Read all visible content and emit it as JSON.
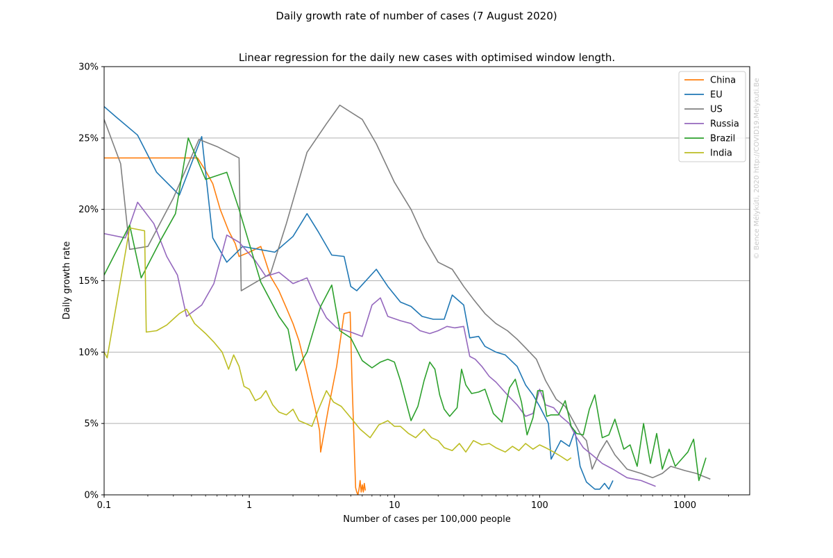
{
  "figure": {
    "suptitle": "Daily growth rate of number of cases (7 August 2020)",
    "watermark": "© Bence Mélykúti, 2020  http://COVID19.Melykuti.Be"
  },
  "chart_data": {
    "type": "line",
    "title": "Linear regression for the daily new cases with optimised window length.",
    "xlabel": "Number of cases per 100,000 people",
    "ylabel": "Daily growth rate",
    "xscale": "log",
    "xlim": [
      0.1,
      2800
    ],
    "ylim": [
      0,
      0.3
    ],
    "x_ticks": [
      0.1,
      1,
      10,
      100,
      1000
    ],
    "x_tick_labels": [
      "0.1",
      "1",
      "10",
      "100",
      "1000"
    ],
    "y_ticks": [
      0,
      0.05,
      0.1,
      0.15,
      0.2,
      0.25,
      0.3
    ],
    "y_tick_labels": [
      "0%",
      "5%",
      "10%",
      "15%",
      "20%",
      "25%",
      "30%"
    ],
    "grid": "horizontal",
    "legend": "top-right",
    "series": [
      {
        "name": "China",
        "color": "#ff7f0e",
        "x": [
          0.1,
          0.44,
          0.5,
          0.56,
          0.63,
          0.72,
          0.8,
          0.85,
          1.0,
          1.2,
          1.4,
          1.6,
          1.8,
          2.0,
          2.2,
          2.5,
          2.7,
          2.85,
          3.05,
          3.1,
          3.5,
          4.0,
          4.5,
          4.95,
          5.1,
          5.4,
          5.5,
          5.6,
          5.7,
          5.8,
          5.9,
          6.0,
          6.1,
          6.2,
          6.3
        ],
        "y": [
          0.236,
          0.236,
          0.227,
          0.218,
          0.2,
          0.185,
          0.176,
          0.167,
          0.17,
          0.174,
          0.153,
          0.143,
          0.131,
          0.12,
          0.108,
          0.085,
          0.07,
          0.06,
          0.045,
          0.03,
          0.06,
          0.09,
          0.127,
          0.128,
          0.08,
          0.005,
          0.002,
          0.0,
          0.004,
          0.01,
          0.002,
          0.007,
          0.002,
          0.008,
          0.003
        ]
      },
      {
        "name": "EU",
        "color": "#1f77b4",
        "x": [
          0.1,
          0.12,
          0.17,
          0.23,
          0.33,
          0.47,
          0.56,
          0.7,
          0.9,
          1.5,
          2.0,
          2.5,
          3.0,
          3.7,
          4.5,
          5.0,
          5.5,
          7.5,
          9.0,
          11.0,
          13.0,
          15.5,
          18.5,
          22.0,
          25.0,
          30.0,
          33.0,
          38.0,
          42.0,
          50.0,
          58.0,
          70.0,
          80.0,
          90.0,
          100.0,
          115.0,
          120.0,
          140.0,
          160.0,
          175.0,
          190.0,
          210.0,
          240.0,
          260.0,
          280.0,
          300.0,
          320.0
        ],
        "y": [
          0.272,
          0.265,
          0.252,
          0.226,
          0.21,
          0.251,
          0.18,
          0.163,
          0.174,
          0.17,
          0.181,
          0.197,
          0.184,
          0.168,
          0.167,
          0.146,
          0.143,
          0.158,
          0.146,
          0.135,
          0.132,
          0.125,
          0.123,
          0.123,
          0.14,
          0.133,
          0.11,
          0.111,
          0.104,
          0.1,
          0.098,
          0.09,
          0.077,
          0.07,
          0.062,
          0.05,
          0.025,
          0.038,
          0.034,
          0.045,
          0.02,
          0.009,
          0.004,
          0.004,
          0.008,
          0.004,
          0.01
        ]
      },
      {
        "name": "US",
        "color": "#7f7f7f",
        "x": [
          0.1,
          0.13,
          0.15,
          0.2,
          0.3,
          0.45,
          0.6,
          0.85,
          0.88,
          1.4,
          1.8,
          2.5,
          3.4,
          4.2,
          6.0,
          7.5,
          10.0,
          13.0,
          16.0,
          20.0,
          25.0,
          30.0,
          35.0,
          42.0,
          50.0,
          60.0,
          70.0,
          80.0,
          95.0,
          110.0,
          130.0,
          150.0,
          170.0,
          190.0,
          210.0,
          230.0,
          260.0,
          290.0,
          330.0,
          400.0,
          500.0,
          600.0,
          700.0,
          800.0,
          1000.0,
          1200.0,
          1500.0
        ],
        "y": [
          0.263,
          0.232,
          0.172,
          0.174,
          0.208,
          0.249,
          0.244,
          0.236,
          0.143,
          0.155,
          0.19,
          0.24,
          0.26,
          0.273,
          0.263,
          0.246,
          0.219,
          0.2,
          0.18,
          0.163,
          0.158,
          0.146,
          0.137,
          0.127,
          0.12,
          0.115,
          0.109,
          0.103,
          0.095,
          0.08,
          0.067,
          0.062,
          0.052,
          0.043,
          0.038,
          0.018,
          0.03,
          0.038,
          0.028,
          0.018,
          0.015,
          0.012,
          0.015,
          0.02,
          0.017,
          0.015,
          0.011
        ]
      },
      {
        "name": "Russia",
        "color": "#9467bd",
        "x": [
          0.1,
          0.14,
          0.17,
          0.22,
          0.27,
          0.32,
          0.37,
          0.47,
          0.57,
          0.7,
          0.85,
          1.1,
          1.3,
          1.6,
          2.0,
          2.5,
          2.9,
          3.4,
          4.0,
          5.0,
          6.0,
          7.0,
          8.0,
          9.0,
          11.0,
          13.0,
          15.0,
          17.5,
          20.0,
          23.0,
          26.0,
          30.0,
          33.0,
          36.0,
          40.0,
          45.0,
          50.0,
          60.0,
          70.0,
          80.0,
          90.0,
          100.0,
          110.0,
          125.0,
          140.0,
          160.0,
          180.0,
          200.0,
          230.0,
          270.0,
          320.0,
          400.0,
          500.0,
          630.0
        ],
        "y": [
          0.183,
          0.18,
          0.205,
          0.19,
          0.167,
          0.154,
          0.125,
          0.133,
          0.148,
          0.182,
          0.177,
          0.164,
          0.153,
          0.156,
          0.148,
          0.152,
          0.137,
          0.124,
          0.117,
          0.114,
          0.111,
          0.133,
          0.138,
          0.125,
          0.122,
          0.12,
          0.115,
          0.113,
          0.115,
          0.118,
          0.117,
          0.118,
          0.097,
          0.095,
          0.09,
          0.083,
          0.079,
          0.07,
          0.063,
          0.055,
          0.057,
          0.074,
          0.063,
          0.061,
          0.055,
          0.05,
          0.04,
          0.033,
          0.028,
          0.022,
          0.018,
          0.012,
          0.01,
          0.006
        ]
      },
      {
        "name": "Brazil",
        "color": "#2ca02c",
        "x": [
          0.1,
          0.15,
          0.18,
          0.25,
          0.31,
          0.38,
          0.5,
          0.7,
          0.85,
          1.2,
          1.6,
          1.85,
          2.1,
          2.5,
          3.1,
          3.7,
          4.2,
          5.0,
          6.0,
          7.0,
          8.0,
          9.0,
          10.0,
          11.0,
          13.0,
          14.5,
          16.0,
          17.5,
          19.0,
          20.5,
          22.0,
          24.0,
          27.0,
          29.0,
          31.0,
          34.0,
          38.0,
          42.0,
          48.0,
          55.0,
          62.0,
          68.0,
          75.0,
          82.0,
          90.0,
          97.0,
          105.0,
          112.0,
          120.0,
          135.0,
          150.0,
          165.0,
          180.0,
          200.0,
          220.0,
          240.0,
          270.0,
          300.0,
          330.0,
          380.0,
          420.0,
          470.0,
          520.0,
          580.0,
          640.0,
          700.0,
          780.0,
          860.0,
          950.0,
          1050.0,
          1150.0,
          1250.0,
          1400.0
        ],
        "y": [
          0.154,
          0.189,
          0.152,
          0.18,
          0.197,
          0.25,
          0.221,
          0.226,
          0.2,
          0.149,
          0.125,
          0.116,
          0.087,
          0.1,
          0.132,
          0.147,
          0.115,
          0.11,
          0.094,
          0.089,
          0.093,
          0.095,
          0.093,
          0.08,
          0.052,
          0.062,
          0.08,
          0.093,
          0.088,
          0.07,
          0.06,
          0.055,
          0.061,
          0.088,
          0.077,
          0.071,
          0.072,
          0.074,
          0.057,
          0.051,
          0.075,
          0.081,
          0.065,
          0.042,
          0.054,
          0.073,
          0.073,
          0.055,
          0.056,
          0.056,
          0.066,
          0.048,
          0.043,
          0.042,
          0.06,
          0.07,
          0.04,
          0.042,
          0.053,
          0.032,
          0.035,
          0.02,
          0.05,
          0.022,
          0.043,
          0.018,
          0.032,
          0.02,
          0.025,
          0.03,
          0.039,
          0.01,
          0.026
        ]
      },
      {
        "name": "India",
        "color": "#bcbd22",
        "x": [
          0.1,
          0.105,
          0.15,
          0.19,
          0.195,
          0.23,
          0.27,
          0.33,
          0.37,
          0.42,
          0.5,
          0.57,
          0.65,
          0.72,
          0.78,
          0.85,
          0.92,
          1.0,
          1.1,
          1.2,
          1.3,
          1.45,
          1.6,
          1.8,
          2.0,
          2.2,
          2.45,
          2.7,
          3.0,
          3.4,
          3.8,
          4.3,
          5.0,
          5.8,
          6.8,
          7.8,
          9.0,
          10.0,
          11.0,
          12.5,
          14.0,
          16.0,
          18.0,
          20.0,
          22.0,
          25.0,
          28.0,
          31.0,
          35.0,
          40.0,
          45.0,
          50.0,
          58.0,
          65.0,
          72.0,
          80.0,
          90.0,
          100.0,
          110.0,
          125.0,
          140.0,
          155.0,
          165.0
        ],
        "y": [
          0.1,
          0.096,
          0.187,
          0.185,
          0.114,
          0.115,
          0.119,
          0.127,
          0.13,
          0.12,
          0.113,
          0.107,
          0.1,
          0.088,
          0.098,
          0.09,
          0.076,
          0.074,
          0.066,
          0.068,
          0.073,
          0.063,
          0.058,
          0.056,
          0.06,
          0.052,
          0.05,
          0.048,
          0.06,
          0.073,
          0.065,
          0.062,
          0.054,
          0.046,
          0.04,
          0.049,
          0.052,
          0.048,
          0.048,
          0.043,
          0.04,
          0.046,
          0.04,
          0.038,
          0.033,
          0.031,
          0.036,
          0.03,
          0.038,
          0.035,
          0.036,
          0.033,
          0.03,
          0.034,
          0.031,
          0.036,
          0.032,
          0.035,
          0.033,
          0.03,
          0.027,
          0.024,
          0.026
        ]
      }
    ]
  }
}
